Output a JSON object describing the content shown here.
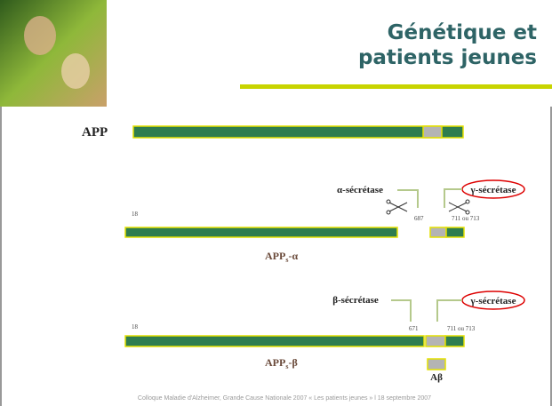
{
  "header": {
    "title_lines": [
      "Génétique et",
      "patients jeunes"
    ]
  },
  "diagram": {
    "app_label": "APP",
    "alpha": {
      "enzyme": "α-sécrétase",
      "gamma": "γ-sécrétase",
      "start": "18",
      "cut": "687",
      "end": "711 ou 713",
      "product_main": "APP",
      "product_sub": "s",
      "product_suffix": "-α"
    },
    "beta": {
      "enzyme": "β-sécrétase",
      "gamma": "γ-sécrétase",
      "start": "18",
      "cut": "671",
      "end": "711 ou 713",
      "product_main": "APP",
      "product_sub": "s",
      "product_suffix": "-β",
      "peptide": "Aβ"
    }
  },
  "footer": "Colloque Maladie d'Alzheimer, Grande Cause Nationale 2007 « Les patients jeunes » l 18 septembre 2007"
}
